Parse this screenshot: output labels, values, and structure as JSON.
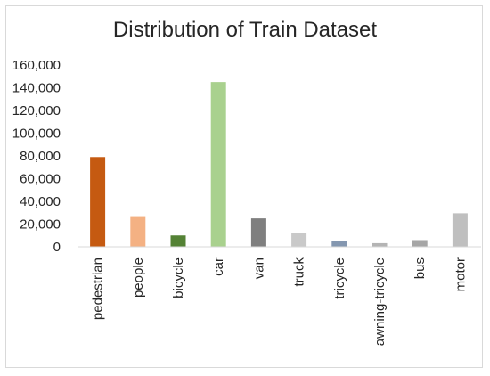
{
  "chart_data": {
    "type": "bar",
    "title": "Distribution of Train Dataset",
    "categories": [
      "pedestrian",
      "people",
      "bicycle",
      "car",
      "van",
      "truck",
      "tricycle",
      "awning-tricycle",
      "bus",
      "motor"
    ],
    "values": [
      79000,
      27000,
      10000,
      145000,
      25000,
      12500,
      4800,
      3200,
      5900,
      29500
    ],
    "colors": [
      "#c55a11",
      "#f4b183",
      "#548235",
      "#a9d18e",
      "#7f7f7f",
      "#c9c9c9",
      "#8497b0",
      "#b4b4b4",
      "#a6a6a6",
      "#bfbfbf"
    ],
    "yticks": [
      "0",
      "20,000",
      "40,000",
      "60,000",
      "80,000",
      "100,000",
      "120,000",
      "140,000",
      "160,000"
    ],
    "ylim": [
      0,
      160000
    ],
    "grid": false,
    "legend": "none"
  }
}
